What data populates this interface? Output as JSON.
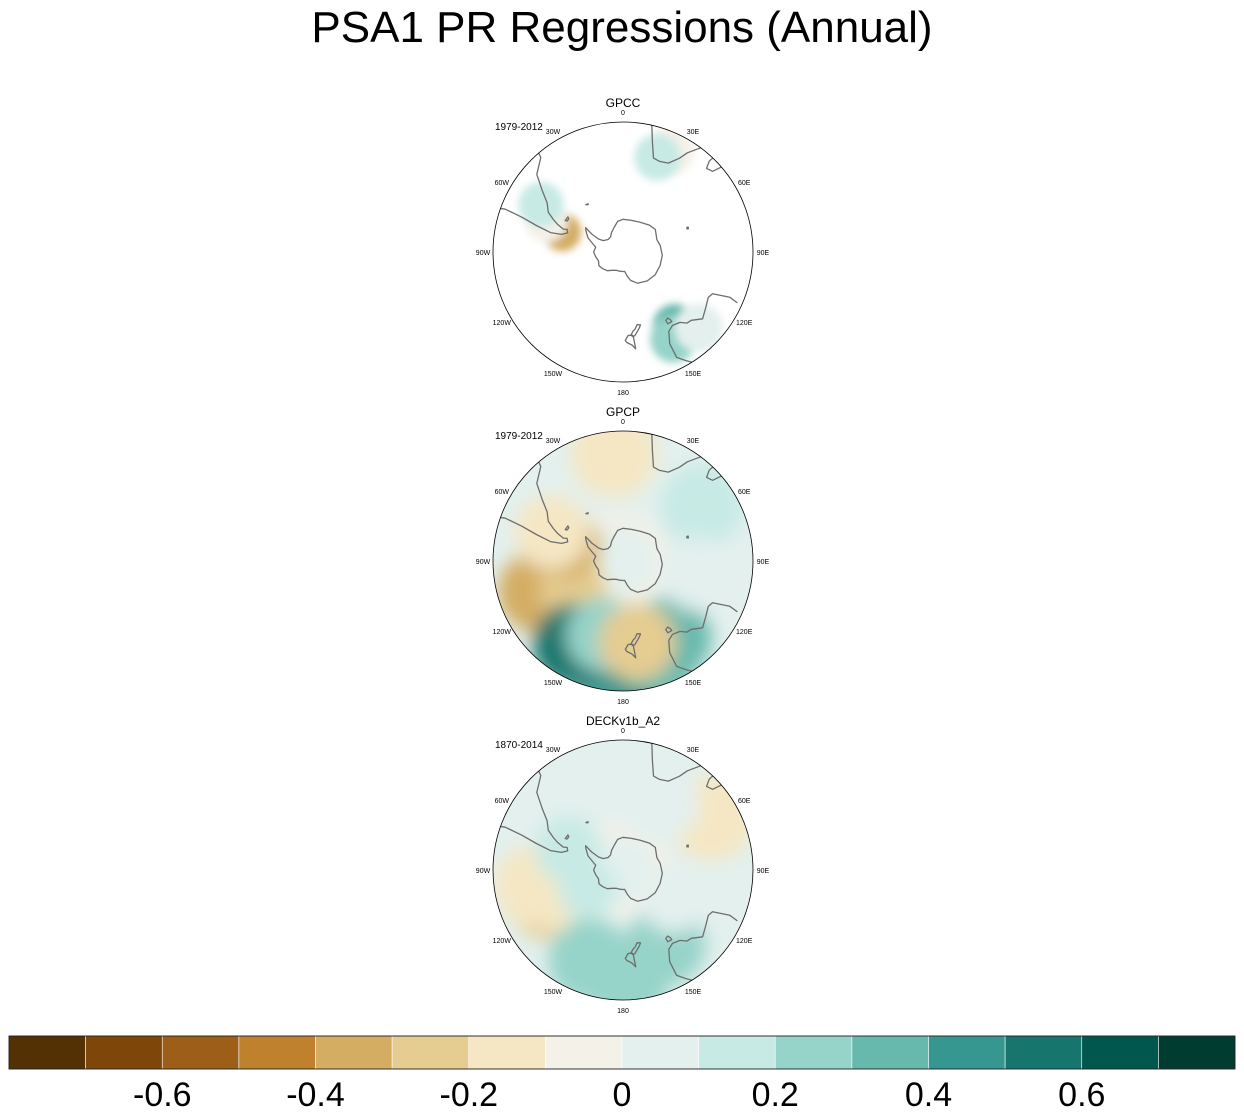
{
  "chart_data": {
    "type": "heatmap",
    "title": "PSA1 PR Regressions (Annual)",
    "projection": "south polar stereographic",
    "longitude_labels": [
      "0",
      "30E",
      "60E",
      "90E",
      "120E",
      "150E",
      "180",
      "150W",
      "120W",
      "90W",
      "60W",
      "30W"
    ],
    "panels": [
      {
        "name": "GPCC",
        "period": "1979-2012",
        "land_only": true,
        "features": [
          {
            "lon": -72,
            "lat": -52,
            "value": -0.35
          },
          {
            "lon": -68,
            "lat": -42,
            "value": -0.1
          },
          {
            "lon": -60,
            "lat": -36,
            "value": 0.15
          },
          {
            "lon": 145,
            "lat": -38,
            "value": 0.3
          },
          {
            "lon": 150,
            "lat": -33,
            "value": 0.2
          },
          {
            "lon": 135,
            "lat": -30,
            "value": 0.08
          },
          {
            "lon": 25,
            "lat": -28,
            "value": -0.1
          },
          {
            "lon": 20,
            "lat": -33,
            "value": 0.1
          }
        ]
      },
      {
        "name": "GPCP",
        "period": "1979-2012",
        "land_only": false,
        "features": [
          {
            "lon": -115,
            "lat": -45,
            "value": -0.55
          },
          {
            "lon": -110,
            "lat": -38,
            "value": -0.35
          },
          {
            "lon": -122,
            "lat": -55,
            "value": -0.3
          },
          {
            "lon": -75,
            "lat": -55,
            "value": -0.35
          },
          {
            "lon": -68,
            "lat": -45,
            "value": -0.15
          },
          {
            "lon": 175,
            "lat": -30,
            "value": 0.55
          },
          {
            "lon": -170,
            "lat": -33,
            "value": 0.45
          },
          {
            "lon": -150,
            "lat": -35,
            "value": 0.5
          },
          {
            "lon": 160,
            "lat": -33,
            "value": 0.35
          },
          {
            "lon": 148,
            "lat": -38,
            "value": 0.3
          },
          {
            "lon": -165,
            "lat": -45,
            "value": 0.2
          },
          {
            "lon": 170,
            "lat": -42,
            "value": -0.25
          },
          {
            "lon": -5,
            "lat": -30,
            "value": -0.15
          },
          {
            "lon": 55,
            "lat": -35,
            "value": 0.15
          },
          {
            "lon": 100,
            "lat": -45,
            "value": 0.08
          }
        ]
      },
      {
        "name": "DECKv1b_A2",
        "period": "1870-2014",
        "land_only": false,
        "features": [
          {
            "lon": -112,
            "lat": -42,
            "value": -0.3
          },
          {
            "lon": -118,
            "lat": -52,
            "value": -0.2
          },
          {
            "lon": -100,
            "lat": -38,
            "value": -0.2
          },
          {
            "lon": 178,
            "lat": -30,
            "value": 0.25
          },
          {
            "lon": -160,
            "lat": -35,
            "value": 0.2
          },
          {
            "lon": 150,
            "lat": -40,
            "value": 0.2
          },
          {
            "lon": -120,
            "lat": -65,
            "value": 0.15
          },
          {
            "lon": 60,
            "lat": -32,
            "value": -0.2
          },
          {
            "lon": -70,
            "lat": -55,
            "value": 0.15
          },
          {
            "lon": 30,
            "lat": -45,
            "value": 0.05
          },
          {
            "lon": 120,
            "lat": -55,
            "value": 0.08
          }
        ]
      }
    ],
    "colorbar": {
      "levels": [
        -0.7,
        -0.6,
        -0.5,
        -0.4,
        -0.3,
        -0.2,
        -0.1,
        0,
        0.1,
        0.2,
        0.3,
        0.4,
        0.5,
        0.6,
        0.7
      ],
      "colors": [
        "#543005",
        "#7f4609",
        "#9d5f18",
        "#bf812d",
        "#d4ad63",
        "#e5cc91",
        "#f5e7c4",
        "#f4f1e8",
        "#e3f0ee",
        "#c7eae5",
        "#96d3c9",
        "#68b9ad",
        "#35978f",
        "#16766d",
        "#01574d",
        "#003c30"
      ],
      "tick_labels": [
        "-0.6",
        "-0.4",
        "-0.2",
        "0",
        "0.2",
        "0.4",
        "0.6"
      ],
      "tick_values": [
        -0.6,
        -0.4,
        -0.2,
        0,
        0.2,
        0.4,
        0.6
      ]
    }
  }
}
